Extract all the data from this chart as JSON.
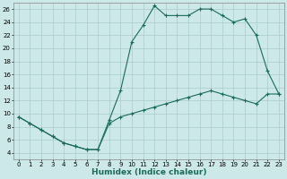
{
  "background_color": "#cce8e8",
  "grid_color": "#aacccc",
  "line_color": "#1a6b5a",
  "xlabel": "Humidex (Indice chaleur)",
  "xlim": [
    -0.5,
    23.5
  ],
  "ylim": [
    3,
    27
  ],
  "yticks": [
    4,
    6,
    8,
    10,
    12,
    14,
    16,
    18,
    20,
    22,
    24,
    26
  ],
  "xticks": [
    0,
    1,
    2,
    3,
    4,
    5,
    6,
    7,
    8,
    9,
    10,
    11,
    12,
    13,
    14,
    15,
    16,
    17,
    18,
    19,
    20,
    21,
    22,
    23
  ],
  "series1_x": [
    0,
    1,
    2,
    3,
    4,
    5,
    6,
    7,
    8,
    9,
    10,
    11,
    12,
    13,
    14,
    15,
    16,
    17,
    18,
    19,
    20,
    21,
    22,
    23
  ],
  "series1_y": [
    9.5,
    8.5,
    7.5,
    6.5,
    5.5,
    5.0,
    4.5,
    4.5,
    9.0,
    13.5,
    21.0,
    23.5,
    26.5,
    25.0,
    25.0,
    25.0,
    26.0,
    26.0,
    25.0,
    24.0,
    24.5,
    22.0,
    16.5,
    13.0
  ],
  "series2_x": [
    0,
    1,
    2,
    3,
    4,
    5,
    6,
    7,
    8,
    9,
    10,
    11,
    12,
    13,
    14,
    15,
    16,
    17,
    18,
    19,
    20,
    21,
    22,
    23
  ],
  "series2_y": [
    9.5,
    8.5,
    7.5,
    6.5,
    5.5,
    5.0,
    4.5,
    4.5,
    8.5,
    9.5,
    10.0,
    10.5,
    11.0,
    11.5,
    12.0,
    12.5,
    13.0,
    13.5,
    13.0,
    12.5,
    12.0,
    11.5,
    13.0,
    13.0
  ],
  "tick_fontsize": 5.0,
  "xlabel_fontsize": 6.5
}
